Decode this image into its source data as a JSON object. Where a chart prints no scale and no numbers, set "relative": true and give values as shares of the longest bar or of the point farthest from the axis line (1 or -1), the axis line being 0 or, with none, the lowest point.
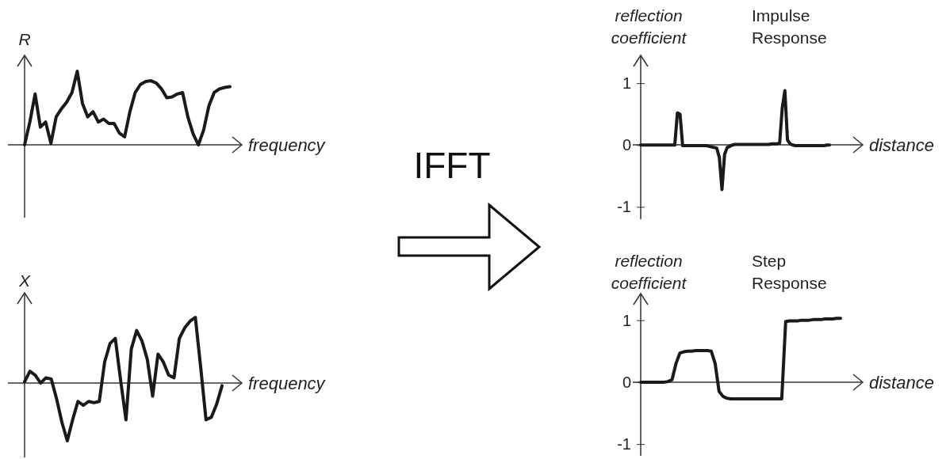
{
  "chart_data": [
    {
      "type": "line",
      "xlabel": "frequency",
      "ylabel": "R",
      "relative": true,
      "categories": [
        null,
        null,
        null,
        null,
        null,
        null,
        null,
        null,
        null,
        null,
        null,
        null,
        null,
        null,
        null,
        null,
        null,
        null,
        null,
        null,
        null,
        null,
        null,
        null,
        null,
        null,
        null,
        null,
        null,
        null,
        null,
        null,
        null,
        null,
        null,
        null,
        null,
        null,
        null,
        null
      ],
      "series": [
        {
          "color": "#1a1a1a",
          "values": [
            0,
            0.31,
            0.69,
            0.24,
            0.31,
            0.02,
            0.38,
            0.49,
            0.58,
            0.71,
            1,
            0.56,
            0.38,
            0.45,
            0.31,
            0.35,
            0.29,
            0.29,
            0.16,
            0.11,
            0.45,
            0.71,
            0.82,
            0.86,
            0.87,
            0.84,
            0.76,
            0.64,
            0.65,
            0.69,
            0.71,
            0.38,
            0.15,
            0,
            0.2,
            0.53,
            0.71,
            0.76,
            0.78,
            0.79
          ]
        }
      ]
    },
    {
      "type": "line",
      "xlabel": "frequency",
      "ylabel": "X",
      "relative": true,
      "categories": [
        null,
        null,
        null,
        null,
        null,
        null,
        null,
        null,
        null,
        null,
        null,
        null,
        null,
        null,
        null,
        null,
        null,
        null,
        null,
        null,
        null,
        null,
        null,
        null,
        null,
        null,
        null,
        null,
        null,
        null,
        null,
        null,
        null,
        null,
        null,
        null,
        null,
        null
      ],
      "series": [
        {
          "color": "#1a1a1a",
          "values": [
            0.02,
            0.18,
            0.12,
            0,
            0.08,
            0.06,
            -0.24,
            -0.6,
            -0.88,
            -0.56,
            -0.28,
            -0.34,
            -0.28,
            -0.3,
            -0.28,
            0.32,
            0.6,
            0.68,
            0.04,
            -0.56,
            0.52,
            0.8,
            0.64,
            0.36,
            -0.2,
            0.44,
            0.32,
            0.12,
            0.08,
            0.68,
            0.84,
            0.94,
            1,
            0.24,
            -0.56,
            -0.52,
            -0.32,
            -0.04
          ]
        }
      ]
    },
    {
      "type": "other",
      "title": "IFFT"
    },
    {
      "type": "line",
      "title": "Impulse Response",
      "xlabel": "distance",
      "ylabel": "reflection coefficient",
      "ylim": [
        -1.2,
        1.45
      ],
      "yticks": [
        -1,
        0,
        1
      ],
      "categories": [
        null,
        null,
        null,
        null,
        null,
        null,
        null,
        null,
        null,
        null,
        null,
        null,
        null,
        null,
        null,
        null,
        null,
        null,
        null,
        null,
        null,
        null,
        null,
        null,
        null,
        null,
        null,
        null,
        null,
        null,
        null,
        null,
        null,
        null,
        null,
        null,
        null,
        null,
        null,
        null,
        null,
        null,
        null,
        null,
        null,
        null,
        null,
        null,
        null,
        null,
        null,
        null,
        null,
        null,
        null,
        null,
        null,
        null,
        null,
        null,
        null,
        null,
        null,
        null,
        null,
        null,
        null,
        null,
        null,
        null,
        null,
        null,
        null
      ],
      "series": [
        {
          "color": "#1a1a1a",
          "values": [
            0,
            0,
            0,
            0,
            0,
            0,
            0,
            0,
            0,
            0,
            0,
            0,
            0,
            0,
            0.52,
            0.5,
            -0.01,
            -0.01,
            -0.01,
            -0.01,
            -0.01,
            -0.01,
            -0.01,
            -0.01,
            -0.01,
            -0.01,
            -0.02,
            -0.03,
            -0.04,
            -0.05,
            -0.2,
            -0.72,
            -0.15,
            -0.04,
            -0.02,
            0,
            0.01,
            0.01,
            0.01,
            0.01,
            0.01,
            0.01,
            0.01,
            0.01,
            0.01,
            0.01,
            0.01,
            0.01,
            0.01,
            0.01,
            0.02,
            0.02,
            0.02,
            0.03,
            0.6,
            0.88,
            0.08,
            0.02,
            0,
            -0.01,
            -0.01,
            -0.01,
            -0.01,
            -0.01,
            -0.01,
            -0.01,
            -0.01,
            -0.01,
            -0.01,
            -0.01,
            -0.01,
            0,
            0
          ]
        }
      ]
    },
    {
      "type": "line",
      "title": "Step Response",
      "xlabel": "distance",
      "ylabel": "reflection coefficient",
      "ylim": [
        -1.19,
        1.43
      ],
      "yticks": [
        -1,
        0,
        1
      ],
      "categories": [
        null,
        null,
        null,
        null,
        null,
        null,
        null,
        null,
        null,
        null,
        null,
        null,
        null,
        null,
        null,
        null,
        null,
        null,
        null,
        null,
        null,
        null,
        null,
        null,
        null,
        null,
        null,
        null,
        null,
        null,
        null,
        null,
        null,
        null,
        null,
        null,
        null,
        null,
        null,
        null,
        null,
        null,
        null,
        null,
        null,
        null,
        null,
        null,
        null,
        null,
        null,
        null
      ],
      "series": [
        {
          "color": "#1a1a1a",
          "values": [
            0,
            0,
            0,
            0,
            0,
            0,
            0,
            0.01,
            0.04,
            0.3,
            0.47,
            0.49,
            0.5,
            0.5,
            0.51,
            0.51,
            0.51,
            0.51,
            0.5,
            0.3,
            -0.15,
            -0.23,
            -0.26,
            -0.27,
            -0.27,
            -0.27,
            -0.27,
            -0.27,
            -0.27,
            -0.27,
            -0.27,
            -0.27,
            -0.27,
            -0.27,
            -0.27,
            -0.27,
            -0.27,
            0.98,
            0.99,
            0.99,
            0.99,
            1,
            1,
            1,
            1.01,
            1.01,
            1.01,
            1.02,
            1.02,
            1.02,
            1.03,
            1.03
          ]
        }
      ]
    }
  ]
}
